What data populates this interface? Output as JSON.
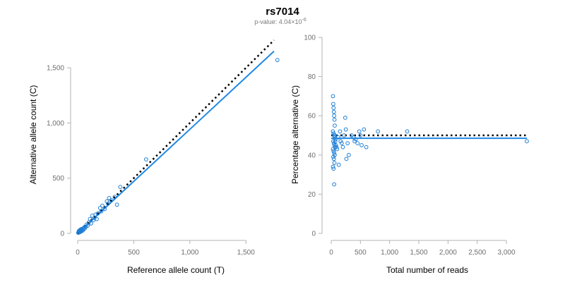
{
  "figure": {
    "title": "rs7014",
    "subtitle_prefix": "p-value: 4.04×10",
    "subtitle_exponent": "-6"
  },
  "colors": {
    "points": "#1e7fd6",
    "fit_line": "#1e88e5",
    "reference_line": "#000000",
    "axis": "#b3b3b3",
    "tick_text": "#6e6e6e"
  },
  "chart_data": [
    {
      "type": "scatter",
      "title": "",
      "xlabel": "Reference allele count (T)",
      "ylabel": "Alternative allele count (C)",
      "xlim": [
        0,
        1750
      ],
      "ylim": [
        0,
        1750
      ],
      "xticks": [
        0,
        500,
        1000,
        1500
      ],
      "yticks": [
        0,
        500,
        1000,
        1500
      ],
      "xtick_labels": [
        "0",
        "500",
        "1,000",
        "1,500"
      ],
      "ytick_labels": [
        "0",
        "500",
        "1,000",
        "1,500"
      ],
      "grid": false,
      "series": [
        {
          "kind": "points",
          "x": [
            5,
            8,
            10,
            12,
            15,
            18,
            20,
            22,
            25,
            28,
            30,
            32,
            35,
            40,
            45,
            50,
            55,
            60,
            65,
            70,
            80,
            90,
            100,
            110,
            120,
            130,
            140,
            150,
            160,
            170,
            180,
            200,
            210,
            220,
            240,
            260,
            270,
            280,
            300,
            330,
            350,
            380,
            610,
            1780
          ],
          "y": [
            5,
            10,
            20,
            8,
            25,
            15,
            30,
            12,
            20,
            35,
            18,
            28,
            40,
            30,
            25,
            45,
            50,
            40,
            60,
            55,
            80,
            70,
            100,
            130,
            90,
            160,
            120,
            140,
            170,
            130,
            180,
            230,
            200,
            250,
            220,
            290,
            270,
            320,
            300,
            330,
            260,
            420,
            670,
            1570
          ]
        },
        {
          "kind": "fit-line",
          "x": [
            0,
            1750
          ],
          "y": [
            0,
            1650
          ]
        },
        {
          "kind": "reference-line",
          "x": [
            0,
            1750
          ],
          "y": [
            0,
            1750
          ]
        }
      ]
    },
    {
      "type": "scatter",
      "title": "",
      "xlabel": "Total number of reads",
      "ylabel": "Percentage alternative (C)",
      "xlim": [
        0,
        3350
      ],
      "ylim": [
        0,
        100
      ],
      "xticks": [
        0,
        500,
        1000,
        1500,
        2000,
        2500,
        3000
      ],
      "yticks": [
        0,
        20,
        40,
        60,
        80,
        100
      ],
      "xtick_labels": [
        "0",
        "500",
        "1,000",
        "1,500",
        "2,000",
        "2,500",
        "3,000"
      ],
      "ytick_labels": [
        "0",
        "20",
        "40",
        "60",
        "80",
        "100"
      ],
      "grid": false,
      "series": [
        {
          "kind": "points",
          "x": [
            30,
            35,
            40,
            45,
            50,
            55,
            60,
            30,
            40,
            50,
            60,
            70,
            35,
            45,
            55,
            65,
            30,
            40,
            50,
            60,
            35,
            45,
            55,
            30,
            40,
            50,
            60,
            70,
            80,
            90,
            100,
            120,
            130,
            150,
            160,
            180,
            200,
            220,
            240,
            250,
            260,
            280,
            300,
            350,
            380,
            400,
            420,
            450,
            480,
            500,
            520,
            560,
            600,
            800,
            1300,
            3350
          ],
          "y": [
            70,
            66,
            64,
            62,
            60,
            58,
            55,
            52,
            51,
            50,
            49,
            48,
            47,
            46,
            45,
            44,
            43,
            42,
            41,
            40,
            39,
            38,
            36,
            34,
            33,
            25,
            50,
            47,
            45,
            44,
            43,
            49,
            35,
            52,
            47,
            46,
            44,
            50,
            59,
            53,
            38,
            46,
            40,
            50,
            49,
            47,
            48,
            46,
            52,
            50,
            45,
            53,
            44,
            52,
            52,
            47
          ]
        },
        {
          "kind": "fit-line",
          "x": [
            0,
            3350
          ],
          "y": [
            48.5,
            48.5
          ]
        },
        {
          "kind": "reference-line",
          "x": [
            0,
            3350
          ],
          "y": [
            50,
            50
          ]
        }
      ]
    }
  ]
}
